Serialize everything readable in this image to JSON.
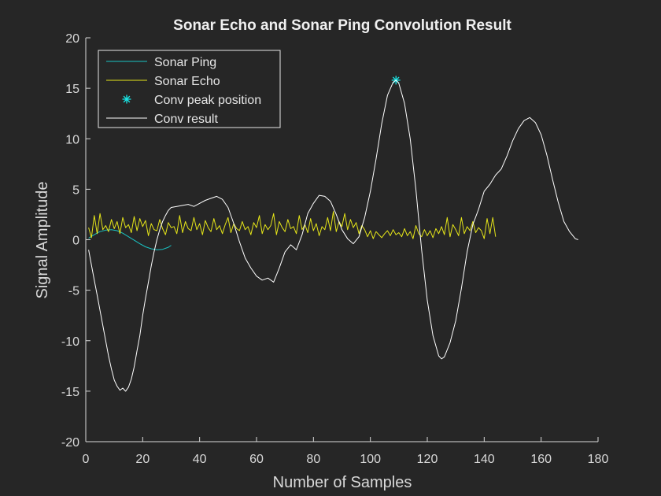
{
  "chart_data": {
    "type": "line",
    "title": "Sonar Echo and Sonar Ping Convolution Result",
    "xlabel": "Number of Samples",
    "ylabel": "Signal Amplitude",
    "xlim": [
      0,
      180
    ],
    "ylim": [
      -20,
      20
    ],
    "xticks": [
      0,
      20,
      40,
      60,
      80,
      100,
      120,
      140,
      160,
      180
    ],
    "yticks": [
      -20,
      -15,
      -10,
      -5,
      0,
      5,
      10,
      15,
      20
    ],
    "grid": false,
    "legend_placement": "top-left",
    "background": "#262626",
    "series": [
      {
        "name": "Sonar Ping",
        "color": "#19c3c3",
        "style": "line",
        "x": [
          1,
          3,
          5,
          7,
          9,
          11,
          13,
          15,
          17,
          19,
          21,
          23,
          25,
          27,
          29,
          30
        ],
        "y": [
          0.15,
          0.5,
          0.8,
          0.95,
          1.0,
          0.9,
          0.65,
          0.3,
          -0.05,
          -0.4,
          -0.7,
          -0.9,
          -1.0,
          -0.95,
          -0.75,
          -0.55
        ]
      },
      {
        "name": "Sonar Echo",
        "color": "#e6e619",
        "style": "line",
        "x": [
          1,
          2,
          3,
          4,
          5,
          6,
          7,
          8,
          9,
          10,
          11,
          12,
          13,
          14,
          15,
          16,
          17,
          18,
          19,
          20,
          21,
          22,
          23,
          24,
          25,
          26,
          27,
          28,
          29,
          30,
          31,
          32,
          33,
          34,
          35,
          36,
          37,
          38,
          39,
          40,
          41,
          42,
          43,
          44,
          45,
          46,
          47,
          48,
          49,
          50,
          51,
          52,
          53,
          54,
          55,
          56,
          57,
          58,
          59,
          60,
          61,
          62,
          63,
          64,
          65,
          66,
          67,
          68,
          69,
          70,
          71,
          72,
          73,
          74,
          75,
          76,
          77,
          78,
          79,
          80,
          81,
          82,
          83,
          84,
          85,
          86,
          87,
          88,
          89,
          90,
          91,
          92,
          93,
          94,
          95,
          96,
          97,
          98,
          99,
          100,
          101,
          102,
          103,
          104,
          105,
          106,
          107,
          108,
          109,
          110,
          111,
          112,
          113,
          114,
          115,
          116,
          117,
          118,
          119,
          120,
          121,
          122,
          123,
          124,
          125,
          126,
          127,
          128,
          129,
          130,
          131,
          132,
          133,
          134,
          135,
          136,
          137,
          138,
          139,
          140,
          141,
          142,
          143,
          144
        ],
        "y": [
          1.2,
          0.2,
          2.4,
          0.6,
          2.6,
          1.0,
          1.4,
          0.8,
          2.0,
          1.1,
          1.8,
          0.6,
          2.2,
          1.2,
          1.5,
          0.7,
          2.3,
          0.9,
          2.1,
          1.3,
          1.9,
          0.4,
          1.6,
          1.0,
          0.9,
          2.0,
          1.1,
          0.5,
          1.7,
          1.2,
          1.3,
          0.6,
          2.4,
          0.7,
          1.8,
          1.1,
          0.9,
          2.2,
          1.0,
          1.6,
          0.5,
          1.9,
          1.2,
          0.8,
          2.1,
          1.0,
          1.4,
          0.6,
          1.5,
          2.2,
          0.7,
          1.6,
          1.1,
          0.9,
          1.8,
          1.0,
          1.3,
          0.5,
          1.7,
          1.2,
          2.4,
          0.6,
          1.5,
          1.0,
          1.4,
          2.6,
          0.5,
          1.8,
          1.2,
          0.8,
          2.0,
          1.1,
          1.3,
          0.6,
          2.4,
          1.0,
          1.5,
          0.7,
          2.1,
          0.9,
          1.6,
          0.4,
          1.3,
          1.0,
          2.2,
          0.9,
          2.8,
          0.8,
          1.8,
          1.3,
          2.6,
          1.0,
          2.0,
          1.2,
          1.7,
          0.6,
          1.4,
          1.0,
          0.3,
          0.9,
          0.1,
          0.8,
          0.5,
          0.2,
          0.6,
          0.9,
          0.4,
          1.0,
          0.5,
          0.7,
          0.3,
          1.1,
          0.4,
          0.8,
          0.1,
          1.4,
          0.6,
          0.3,
          1.0,
          0.4,
          0.9,
          0.2,
          1.1,
          0.6,
          1.3,
          0.5,
          2.2,
          0.3,
          1.5,
          1.0,
          0.4,
          2.2,
          0.6,
          1.3,
          0.9,
          1.8,
          0.7,
          1.2,
          0.9,
          0.1,
          2.1,
          0.6,
          2.2,
          0.3
        ]
      },
      {
        "name": "Conv peak position",
        "color": "#19e6e6",
        "style": "marker",
        "marker": "asterisk",
        "x": [
          109
        ],
        "y": [
          15.8
        ]
      },
      {
        "name": "Conv result",
        "color": "#ffffff",
        "style": "line",
        "x": [
          1,
          2,
          3,
          4,
          5,
          6,
          7,
          8,
          9,
          10,
          11,
          12,
          13,
          14,
          15,
          16,
          17,
          18,
          19,
          20,
          21,
          22,
          23,
          24,
          25,
          26,
          27,
          28,
          29,
          30,
          32,
          34,
          36,
          38,
          40,
          42,
          44,
          46,
          48,
          50,
          52,
          54,
          56,
          58,
          60,
          62,
          64,
          66,
          68,
          70,
          72,
          74,
          76,
          78,
          80,
          82,
          84,
          86,
          88,
          90,
          92,
          94,
          96,
          98,
          100,
          102,
          104,
          106,
          108,
          109,
          110,
          112,
          114,
          116,
          118,
          120,
          122,
          124,
          125,
          126,
          128,
          130,
          132,
          134,
          136,
          138,
          140,
          142,
          144,
          146,
          148,
          150,
          152,
          154,
          156,
          158,
          160,
          162,
          164,
          166,
          168,
          170,
          172,
          173
        ],
        "y": [
          -1.0,
          -2.5,
          -4.0,
          -5.5,
          -7.0,
          -8.5,
          -10.0,
          -11.5,
          -12.8,
          -13.9,
          -14.5,
          -14.9,
          -14.7,
          -15.0,
          -14.6,
          -13.8,
          -12.6,
          -11.0,
          -9.5,
          -7.5,
          -5.8,
          -4.2,
          -2.6,
          -1.2,
          0.0,
          1.0,
          1.8,
          2.4,
          2.9,
          3.2,
          3.3,
          3.4,
          3.5,
          3.3,
          3.6,
          3.9,
          4.1,
          4.3,
          4.0,
          3.2,
          1.6,
          -0.2,
          -1.8,
          -2.8,
          -3.6,
          -4.0,
          -3.8,
          -4.2,
          -2.8,
          -1.2,
          -0.5,
          -1.0,
          0.5,
          2.6,
          3.6,
          4.4,
          4.3,
          3.8,
          2.5,
          1.0,
          0.1,
          -0.4,
          0.3,
          2.2,
          4.8,
          8.0,
          11.5,
          14.3,
          15.6,
          15.8,
          15.5,
          13.5,
          10.0,
          5.0,
          -1.0,
          -6.0,
          -9.5,
          -11.5,
          -11.8,
          -11.6,
          -10.2,
          -8.0,
          -4.8,
          -1.2,
          1.5,
          3.0,
          4.8,
          5.5,
          6.4,
          7.0,
          8.3,
          9.8,
          11.0,
          11.8,
          12.1,
          11.6,
          10.4,
          8.4,
          6.0,
          3.7,
          1.8,
          0.8,
          0.1,
          0.0
        ]
      }
    ]
  }
}
